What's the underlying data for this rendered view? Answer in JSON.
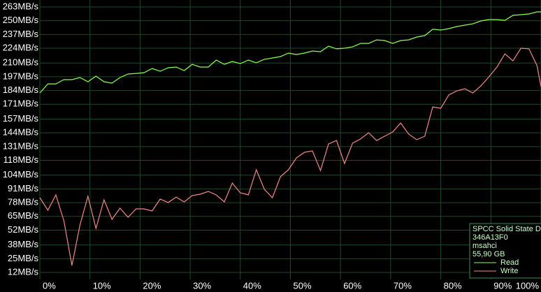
{
  "chart_data": {
    "type": "line",
    "x": [
      0,
      1.6,
      3.2,
      4.8,
      6.4,
      8,
      9.6,
      11.2,
      12.8,
      14.4,
      16,
      17.6,
      19.2,
      20.8,
      22.4,
      24,
      25.6,
      27.2,
      28.8,
      30.4,
      32,
      33.6,
      35.2,
      36.8,
      38.4,
      40,
      41.6,
      43.2,
      44.8,
      46.4,
      48,
      49.6,
      51.2,
      52.8,
      54.4,
      56,
      57.6,
      59.2,
      60.8,
      62.4,
      64,
      65.6,
      67.2,
      68.8,
      70.4,
      72,
      73.6,
      75.2,
      76.8,
      78.4,
      80,
      81.6,
      83.2,
      84.8,
      86.4,
      88,
      89.6,
      91.2,
      92.8,
      94.4,
      96,
      97.6,
      99.2,
      100
    ],
    "series": [
      {
        "name": "Read",
        "color": "#8cff50",
        "values": [
          181.7,
          190.3,
          190.3,
          194.3,
          194.3,
          196.3,
          192.3,
          197.6,
          192.3,
          191.0,
          196.3,
          199.6,
          200.2,
          200.9,
          204.9,
          202.2,
          205.5,
          206.2,
          202.9,
          208.8,
          206.2,
          206.2,
          212.8,
          208.8,
          211.5,
          209.5,
          212.8,
          210.2,
          213.5,
          214.8,
          216.1,
          219.4,
          218.1,
          219.4,
          221.4,
          220.7,
          226.0,
          223.4,
          224.0,
          225.3,
          228.6,
          228.6,
          231.9,
          231.3,
          228.6,
          231.3,
          231.9,
          234.6,
          235.9,
          241.9,
          241.2,
          242.5,
          244.5,
          245.8,
          247.1,
          249.8,
          251.1,
          251.1,
          250.4,
          255.1,
          255.7,
          256.4,
          258.4,
          258.4
        ]
      },
      {
        "name": "Write",
        "color": "#f08888",
        "values": [
          82.7,
          70.8,
          85.3,
          60.9,
          18.6,
          56.9,
          84.0,
          53.6,
          80.7,
          62.2,
          72.8,
          64.2,
          72.1,
          72.1,
          70.1,
          81.4,
          78.1,
          83.3,
          78.7,
          84.7,
          86.0,
          88.6,
          85.3,
          78.7,
          96.5,
          87.3,
          85.3,
          109.1,
          90.6,
          82.7,
          102.5,
          109.1,
          120.3,
          125.6,
          126.9,
          108.4,
          133.5,
          136.8,
          115.0,
          134.2,
          138.2,
          144.1,
          136.8,
          140.8,
          144.8,
          153.3,
          142.8,
          137.5,
          140.8,
          168.5,
          167.2,
          179.8,
          183.7,
          185.7,
          181.7,
          188.4,
          196.9,
          206.2,
          218.7,
          212.1,
          224.0,
          223.4,
          207.5,
          187.7
        ]
      }
    ],
    "xlim": [
      0,
      100
    ],
    "xticks": [
      {
        "value": 0,
        "label": "0%"
      },
      {
        "value": 10,
        "label": "10%"
      },
      {
        "value": 20,
        "label": "20%"
      },
      {
        "value": 30,
        "label": "30%"
      },
      {
        "value": 40,
        "label": "40%"
      },
      {
        "value": 50,
        "label": "50%"
      },
      {
        "value": 60,
        "label": "60%"
      },
      {
        "value": 70,
        "label": "70%"
      },
      {
        "value": 80,
        "label": "80%"
      },
      {
        "value": 90,
        "label": "90%"
      },
      {
        "value": 100,
        "label": "100%"
      }
    ],
    "ylim": [
      5.4,
      269.6
    ],
    "yticks": [
      {
        "value": 263,
        "label": "263MB/s"
      },
      {
        "value": 250,
        "label": "250MB/s"
      },
      {
        "value": 237,
        "label": "237MB/s"
      },
      {
        "value": 224,
        "label": "224MB/s"
      },
      {
        "value": 210,
        "label": "210MB/s"
      },
      {
        "value": 197,
        "label": "197MB/s"
      },
      {
        "value": 184,
        "label": "184MB/s"
      },
      {
        "value": 171,
        "label": "171MB/s"
      },
      {
        "value": 157,
        "label": "157MB/s"
      },
      {
        "value": 144,
        "label": "144MB/s"
      },
      {
        "value": 131,
        "label": "131MB/s"
      },
      {
        "value": 118,
        "label": "118MB/s"
      },
      {
        "value": 104,
        "label": "104MB/s"
      },
      {
        "value": 91,
        "label": "91MB/s"
      },
      {
        "value": 78,
        "label": "78MB/s"
      },
      {
        "value": 65,
        "label": "65MB/s"
      },
      {
        "value": 52,
        "label": "52MB/s"
      },
      {
        "value": 38,
        "label": "38MB/s"
      },
      {
        "value": 25,
        "label": "25MB/s"
      },
      {
        "value": 12,
        "label": "12MB/s"
      }
    ],
    "grid": true,
    "legend_position": "bottom-right",
    "annotations": [
      "SPCC Solid State D",
      "346A13F0",
      "msahci",
      "55,90 GB"
    ]
  }
}
